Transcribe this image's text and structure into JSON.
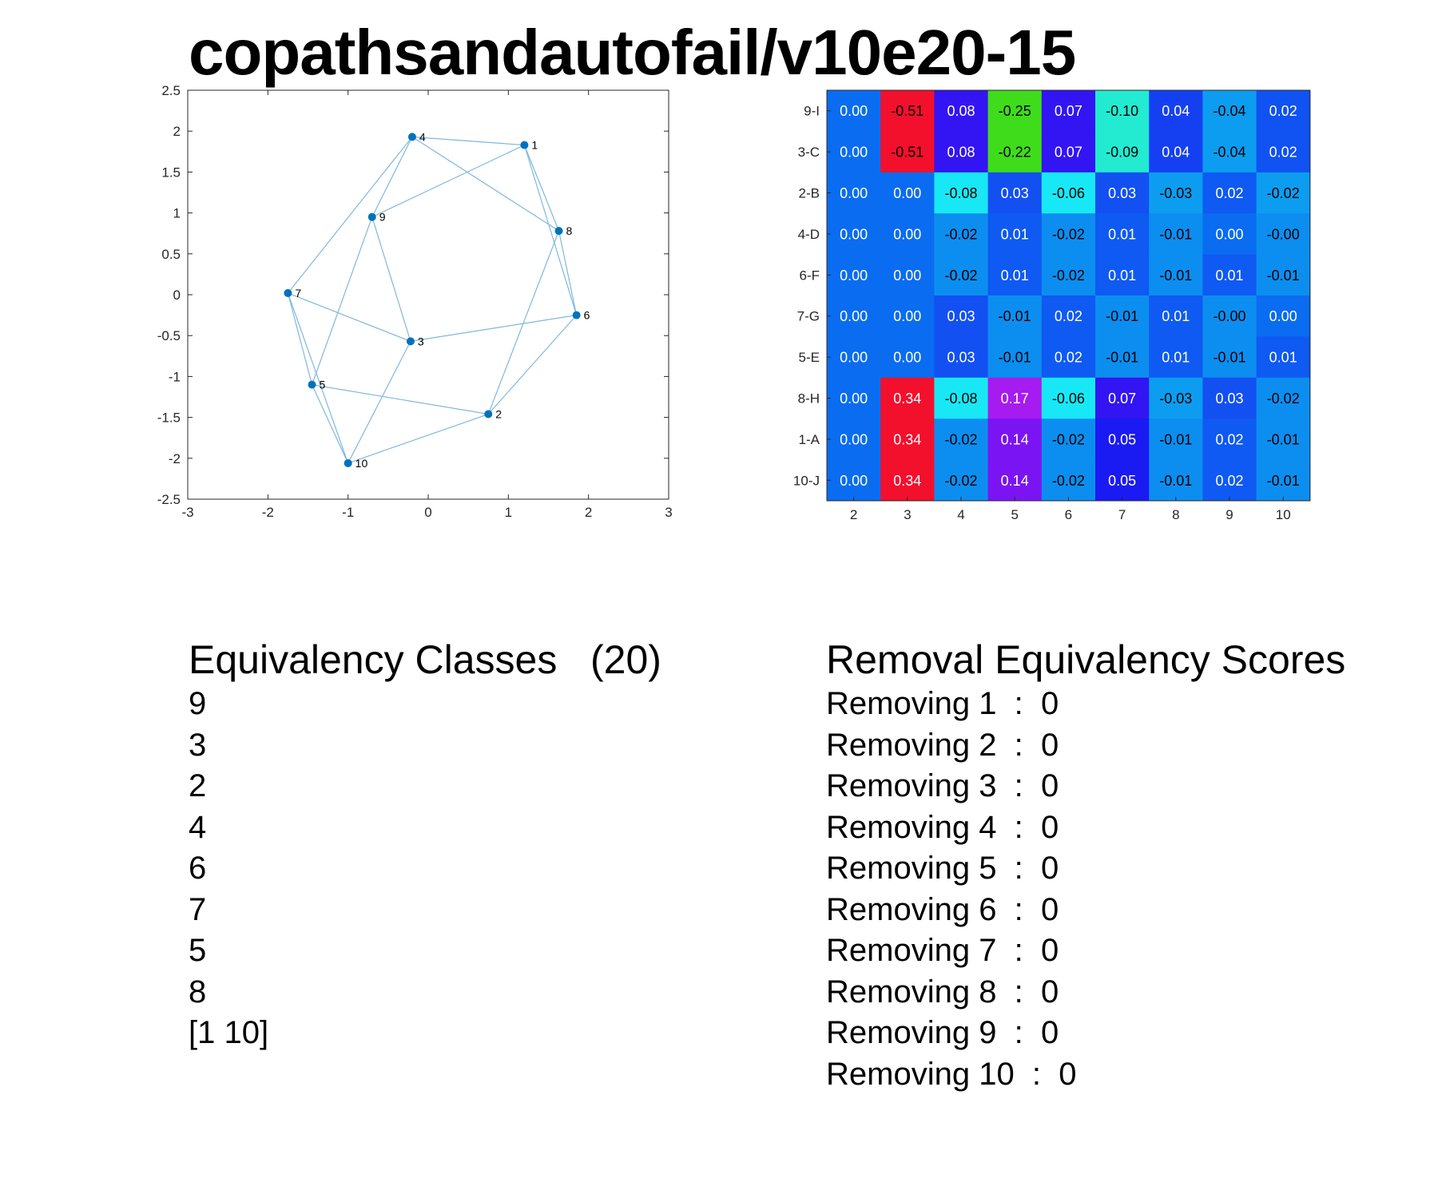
{
  "title": "copathsandautofail/v10e20-15",
  "graph": {
    "x_ticks": [
      "-3",
      "-2",
      "-1",
      "0",
      "1",
      "2",
      "3"
    ],
    "y_ticks": [
      "2.5",
      "2",
      "1.5",
      "1",
      "0.5",
      "0",
      "-0.5",
      "-1",
      "-1.5",
      "-2",
      "-2.5"
    ],
    "xlim": [
      -3,
      3
    ],
    "ylim": [
      -2.5,
      2.5
    ],
    "node_color": "#0072BD",
    "edge_color": "#7FB8DE",
    "nodes": [
      {
        "id": "1",
        "x": 1.2,
        "y": 1.83
      },
      {
        "id": "2",
        "x": 0.75,
        "y": -1.46
      },
      {
        "id": "3",
        "x": -0.22,
        "y": -0.57
      },
      {
        "id": "4",
        "x": -0.2,
        "y": 1.93
      },
      {
        "id": "5",
        "x": -1.45,
        "y": -1.1
      },
      {
        "id": "6",
        "x": 1.85,
        "y": -0.25
      },
      {
        "id": "7",
        "x": -1.75,
        "y": 0.02
      },
      {
        "id": "8",
        "x": 1.63,
        "y": 0.78
      },
      {
        "id": "9",
        "x": -0.7,
        "y": 0.95
      },
      {
        "id": "10",
        "x": -1.0,
        "y": -2.06
      }
    ],
    "edges": [
      [
        "4",
        "1"
      ],
      [
        "4",
        "9"
      ],
      [
        "4",
        "7"
      ],
      [
        "4",
        "8"
      ],
      [
        "1",
        "9"
      ],
      [
        "1",
        "8"
      ],
      [
        "1",
        "6"
      ],
      [
        "8",
        "6"
      ],
      [
        "8",
        "2"
      ],
      [
        "9",
        "3"
      ],
      [
        "9",
        "5"
      ],
      [
        "7",
        "5"
      ],
      [
        "7",
        "3"
      ],
      [
        "7",
        "10"
      ],
      [
        "3",
        "6"
      ],
      [
        "3",
        "10"
      ],
      [
        "6",
        "2"
      ],
      [
        "5",
        "2"
      ],
      [
        "5",
        "10"
      ],
      [
        "10",
        "2"
      ]
    ]
  },
  "chart_data": {
    "type": "heatmap",
    "x_labels": [
      "2",
      "3",
      "4",
      "5",
      "6",
      "7",
      "8",
      "9",
      "10"
    ],
    "y_labels": [
      "9-I",
      "3-C",
      "2-B",
      "4-D",
      "6-F",
      "7-G",
      "5-E",
      "8-H",
      "1-A",
      "10-J"
    ],
    "cells": [
      [
        {
          "text": "0.00",
          "bg": "#0A6CF0",
          "fg": "#ffffff"
        },
        {
          "text": "-0.51",
          "bg": "#F3102C",
          "fg": "#000000"
        },
        {
          "text": "0.08",
          "bg": "#3215F2",
          "fg": "#ffffff"
        },
        {
          "text": "-0.25",
          "bg": "#3FDC1B",
          "fg": "#000000"
        },
        {
          "text": "0.07",
          "bg": "#3215F2",
          "fg": "#ffffff"
        },
        {
          "text": "-0.10",
          "bg": "#22EBD2",
          "fg": "#000000"
        },
        {
          "text": "0.04",
          "bg": "#1540F2",
          "fg": "#ffffff"
        },
        {
          "text": "-0.04",
          "bg": "#0C9DF0",
          "fg": "#000000"
        },
        {
          "text": "0.02",
          "bg": "#1052F2",
          "fg": "#ffffff"
        }
      ],
      [
        {
          "text": "0.00",
          "bg": "#0A6CF0",
          "fg": "#ffffff"
        },
        {
          "text": "-0.51",
          "bg": "#F3102C",
          "fg": "#000000"
        },
        {
          "text": "0.08",
          "bg": "#3215F2",
          "fg": "#ffffff"
        },
        {
          "text": "-0.22",
          "bg": "#3FDC1B",
          "fg": "#000000"
        },
        {
          "text": "0.07",
          "bg": "#3215F2",
          "fg": "#ffffff"
        },
        {
          "text": "-0.09",
          "bg": "#22EBD2",
          "fg": "#000000"
        },
        {
          "text": "0.04",
          "bg": "#1540F2",
          "fg": "#ffffff"
        },
        {
          "text": "-0.04",
          "bg": "#0C9DF0",
          "fg": "#000000"
        },
        {
          "text": "0.02",
          "bg": "#1052F2",
          "fg": "#ffffff"
        }
      ],
      [
        {
          "text": "0.00",
          "bg": "#0A6CF0",
          "fg": "#ffffff"
        },
        {
          "text": "0.00",
          "bg": "#0A6CF0",
          "fg": "#ffffff"
        },
        {
          "text": "-0.08",
          "bg": "#18E8F5",
          "fg": "#000000"
        },
        {
          "text": "0.03",
          "bg": "#1350F2",
          "fg": "#ffffff"
        },
        {
          "text": "-0.06",
          "bg": "#18E8F5",
          "fg": "#000000"
        },
        {
          "text": "0.03",
          "bg": "#1350F2",
          "fg": "#ffffff"
        },
        {
          "text": "-0.03",
          "bg": "#0C9DF0",
          "fg": "#000000"
        },
        {
          "text": "0.02",
          "bg": "#0F5AF2",
          "fg": "#ffffff"
        },
        {
          "text": "-0.02",
          "bg": "#0C9DF0",
          "fg": "#000000"
        }
      ],
      [
        {
          "text": "0.00",
          "bg": "#0A6CF0",
          "fg": "#ffffff"
        },
        {
          "text": "0.00",
          "bg": "#0A6CF0",
          "fg": "#ffffff"
        },
        {
          "text": "-0.02",
          "bg": "#0C8EF0",
          "fg": "#000000"
        },
        {
          "text": "0.01",
          "bg": "#0F5AF2",
          "fg": "#ffffff"
        },
        {
          "text": "-0.02",
          "bg": "#0C8EF0",
          "fg": "#000000"
        },
        {
          "text": "0.01",
          "bg": "#0F5AF2",
          "fg": "#ffffff"
        },
        {
          "text": "-0.01",
          "bg": "#0C8EF0",
          "fg": "#000000"
        },
        {
          "text": "0.00",
          "bg": "#0A6CF0",
          "fg": "#ffffff"
        },
        {
          "text": "-0.00",
          "bg": "#0C8EF0",
          "fg": "#000000"
        }
      ],
      [
        {
          "text": "0.00",
          "bg": "#0A6CF0",
          "fg": "#ffffff"
        },
        {
          "text": "0.00",
          "bg": "#0A6CF0",
          "fg": "#ffffff"
        },
        {
          "text": "-0.02",
          "bg": "#0C8EF0",
          "fg": "#000000"
        },
        {
          "text": "0.01",
          "bg": "#0F5AF2",
          "fg": "#ffffff"
        },
        {
          "text": "-0.02",
          "bg": "#0C8EF0",
          "fg": "#000000"
        },
        {
          "text": "0.01",
          "bg": "#0F5AF2",
          "fg": "#ffffff"
        },
        {
          "text": "-0.01",
          "bg": "#0C8EF0",
          "fg": "#000000"
        },
        {
          "text": "0.01",
          "bg": "#0F5AF2",
          "fg": "#ffffff"
        },
        {
          "text": "-0.01",
          "bg": "#0C8EF0",
          "fg": "#000000"
        }
      ],
      [
        {
          "text": "0.00",
          "bg": "#0A6CF0",
          "fg": "#ffffff"
        },
        {
          "text": "0.00",
          "bg": "#0A6CF0",
          "fg": "#ffffff"
        },
        {
          "text": "0.03",
          "bg": "#1350F2",
          "fg": "#ffffff"
        },
        {
          "text": "-0.01",
          "bg": "#0C8EF0",
          "fg": "#000000"
        },
        {
          "text": "0.02",
          "bg": "#0F5AF2",
          "fg": "#ffffff"
        },
        {
          "text": "-0.01",
          "bg": "#0C8EF0",
          "fg": "#000000"
        },
        {
          "text": "0.01",
          "bg": "#0F5AF2",
          "fg": "#ffffff"
        },
        {
          "text": "-0.00",
          "bg": "#0C8EF0",
          "fg": "#000000"
        },
        {
          "text": "0.00",
          "bg": "#0A6CF0",
          "fg": "#ffffff"
        }
      ],
      [
        {
          "text": "0.00",
          "bg": "#0A6CF0",
          "fg": "#ffffff"
        },
        {
          "text": "0.00",
          "bg": "#0A6CF0",
          "fg": "#ffffff"
        },
        {
          "text": "0.03",
          "bg": "#1350F2",
          "fg": "#ffffff"
        },
        {
          "text": "-0.01",
          "bg": "#0C8EF0",
          "fg": "#000000"
        },
        {
          "text": "0.02",
          "bg": "#0F5AF2",
          "fg": "#ffffff"
        },
        {
          "text": "-0.01",
          "bg": "#0C8EF0",
          "fg": "#000000"
        },
        {
          "text": "0.01",
          "bg": "#0F5AF2",
          "fg": "#ffffff"
        },
        {
          "text": "-0.01",
          "bg": "#0C8EF0",
          "fg": "#000000"
        },
        {
          "text": "0.01",
          "bg": "#0F5AF2",
          "fg": "#ffffff"
        }
      ],
      [
        {
          "text": "0.00",
          "bg": "#0A6CF0",
          "fg": "#ffffff"
        },
        {
          "text": "0.34",
          "bg": "#F3102C",
          "fg": "#ffffff"
        },
        {
          "text": "-0.08",
          "bg": "#18E8F5",
          "fg": "#000000"
        },
        {
          "text": "0.17",
          "bg": "#A61BF0",
          "fg": "#ffffff"
        },
        {
          "text": "-0.06",
          "bg": "#18E8F5",
          "fg": "#000000"
        },
        {
          "text": "0.07",
          "bg": "#3215F2",
          "fg": "#ffffff"
        },
        {
          "text": "-0.03",
          "bg": "#0C9DF0",
          "fg": "#000000"
        },
        {
          "text": "0.03",
          "bg": "#1350F2",
          "fg": "#ffffff"
        },
        {
          "text": "-0.02",
          "bg": "#0C8EF0",
          "fg": "#000000"
        }
      ],
      [
        {
          "text": "0.00",
          "bg": "#0A6CF0",
          "fg": "#ffffff"
        },
        {
          "text": "0.34",
          "bg": "#F3102C",
          "fg": "#ffffff"
        },
        {
          "text": "-0.02",
          "bg": "#0C8EF0",
          "fg": "#000000"
        },
        {
          "text": "0.14",
          "bg": "#7B14F2",
          "fg": "#ffffff"
        },
        {
          "text": "-0.02",
          "bg": "#0C8EF0",
          "fg": "#000000"
        },
        {
          "text": "0.05",
          "bg": "#1A1AF2",
          "fg": "#ffffff"
        },
        {
          "text": "-0.01",
          "bg": "#0C8EF0",
          "fg": "#000000"
        },
        {
          "text": "0.02",
          "bg": "#0F5AF2",
          "fg": "#ffffff"
        },
        {
          "text": "-0.01",
          "bg": "#0C8EF0",
          "fg": "#000000"
        }
      ],
      [
        {
          "text": "0.00",
          "bg": "#0A6CF0",
          "fg": "#ffffff"
        },
        {
          "text": "0.34",
          "bg": "#F3102C",
          "fg": "#ffffff"
        },
        {
          "text": "-0.02",
          "bg": "#0C8EF0",
          "fg": "#000000"
        },
        {
          "text": "0.14",
          "bg": "#7B14F2",
          "fg": "#ffffff"
        },
        {
          "text": "-0.02",
          "bg": "#0C8EF0",
          "fg": "#000000"
        },
        {
          "text": "0.05",
          "bg": "#1A1AF2",
          "fg": "#ffffff"
        },
        {
          "text": "-0.01",
          "bg": "#0C8EF0",
          "fg": "#000000"
        },
        {
          "text": "0.02",
          "bg": "#0F5AF2",
          "fg": "#ffffff"
        },
        {
          "text": "-0.01",
          "bg": "#0C8EF0",
          "fg": "#000000"
        }
      ]
    ]
  },
  "classes": {
    "heading": "Equivalency Classes   (20)",
    "items": [
      "9",
      "3",
      "2",
      "4",
      "6",
      "7",
      "5",
      "8",
      "[1 10]"
    ]
  },
  "scores": {
    "heading": "Removal Equivalency Scores",
    "items": [
      "Removing 1  :  0",
      "Removing 2  :  0",
      "Removing 3  :  0",
      "Removing 4  :  0",
      "Removing 5  :  0",
      "Removing 6  :  0",
      "Removing 7  :  0",
      "Removing 8  :  0",
      "Removing 9  :  0",
      "Removing 10  :  0"
    ]
  }
}
